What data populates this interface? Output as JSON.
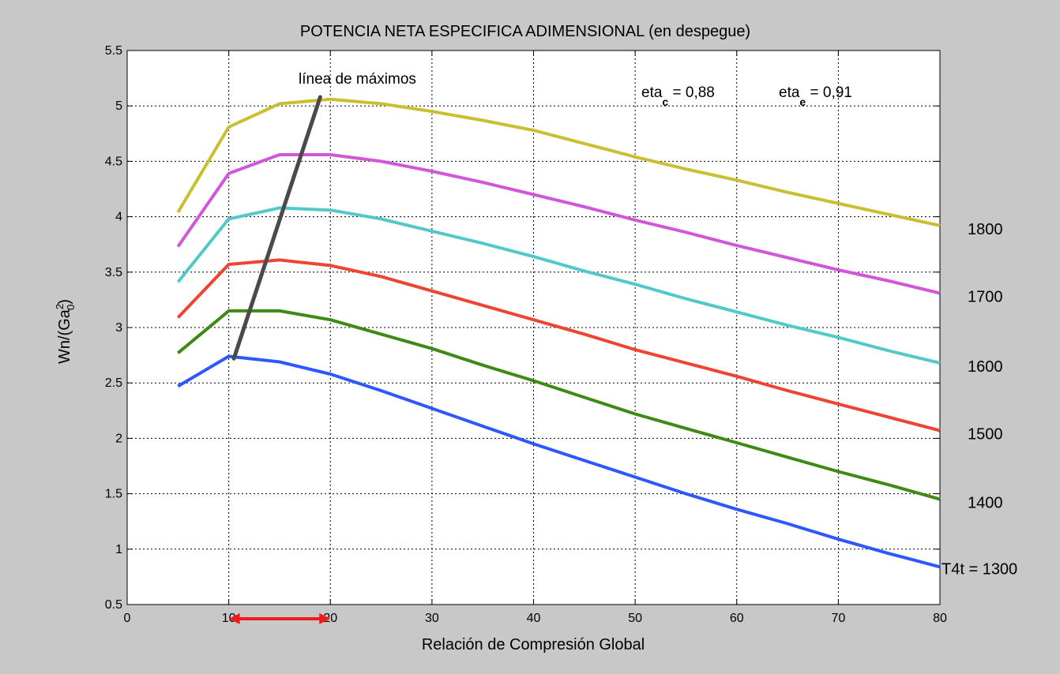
{
  "chart_data": {
    "type": "line",
    "title": "POTENCIA NETA ESPECIFICA ADIMENSIONAL (en despegue)",
    "xlabel": "Relación de Compresión Global",
    "ylabel": {
      "base": "Wn/(Ga",
      "sup": "2",
      "sub": "0",
      "close": ")"
    },
    "xlim": [
      0,
      80
    ],
    "ylim": [
      0.5,
      5.5
    ],
    "xticks": [
      0,
      10,
      20,
      30,
      40,
      50,
      60,
      70,
      80
    ],
    "yticks": [
      0.5,
      1,
      1.5,
      2,
      2.5,
      3,
      3.5,
      4,
      4.5,
      5,
      5.5
    ],
    "grid": true,
    "x": [
      5,
      10,
      15,
      20,
      25,
      30,
      35,
      40,
      45,
      50,
      55,
      60,
      65,
      70,
      75,
      80
    ],
    "series": [
      {
        "name": "1300",
        "color": "#2e57ff",
        "values": [
          2.47,
          2.74,
          2.69,
          2.58,
          2.43,
          2.27,
          2.11,
          1.95,
          1.8,
          1.65,
          1.5,
          1.36,
          1.23,
          1.09,
          0.96,
          0.84
        ]
      },
      {
        "name": "1400",
        "color": "#3e8a14",
        "values": [
          2.77,
          3.15,
          3.15,
          3.07,
          2.94,
          2.81,
          2.66,
          2.52,
          2.37,
          2.22,
          2.09,
          1.96,
          1.83,
          1.7,
          1.58,
          1.45
        ]
      },
      {
        "name": "1500",
        "color": "#f04432",
        "values": [
          3.09,
          3.57,
          3.61,
          3.56,
          3.46,
          3.33,
          3.2,
          3.07,
          2.94,
          2.8,
          2.68,
          2.56,
          2.43,
          2.31,
          2.19,
          2.07
        ]
      },
      {
        "name": "1600",
        "color": "#52c8c8",
        "values": [
          3.41,
          3.98,
          4.08,
          4.06,
          3.98,
          3.87,
          3.76,
          3.64,
          3.51,
          3.39,
          3.26,
          3.14,
          3.02,
          2.91,
          2.79,
          2.68
        ]
      },
      {
        "name": "1700",
        "color": "#d058d8",
        "values": [
          3.73,
          4.39,
          4.56,
          4.56,
          4.5,
          4.41,
          4.31,
          4.2,
          4.09,
          3.97,
          3.86,
          3.74,
          3.63,
          3.52,
          3.42,
          3.31
        ]
      },
      {
        "name": "1800",
        "color": "#c8c030",
        "values": [
          4.04,
          4.81,
          5.02,
          5.06,
          5.02,
          4.95,
          4.87,
          4.78,
          4.66,
          4.54,
          4.43,
          4.33,
          4.22,
          4.12,
          4.02,
          3.92
        ]
      }
    ],
    "series_labels": [
      "T4t = 1300",
      "1400",
      "1500",
      "1600",
      "1700",
      "1800"
    ],
    "max_line": {
      "label": "línea de máximos",
      "color": "#4a4a4a",
      "from": [
        10.5,
        2.72
      ],
      "to": [
        19.0,
        5.08
      ]
    },
    "efficiency_text": {
      "c": {
        "prefix": "eta",
        "sub": "c",
        "value": " = 0,88"
      },
      "e": {
        "prefix": "eta",
        "sub": "e",
        "value": " = 0,91"
      }
    },
    "range_arrow": {
      "color": "#ee1c1c",
      "x_from": 10,
      "x_to": 20
    }
  }
}
